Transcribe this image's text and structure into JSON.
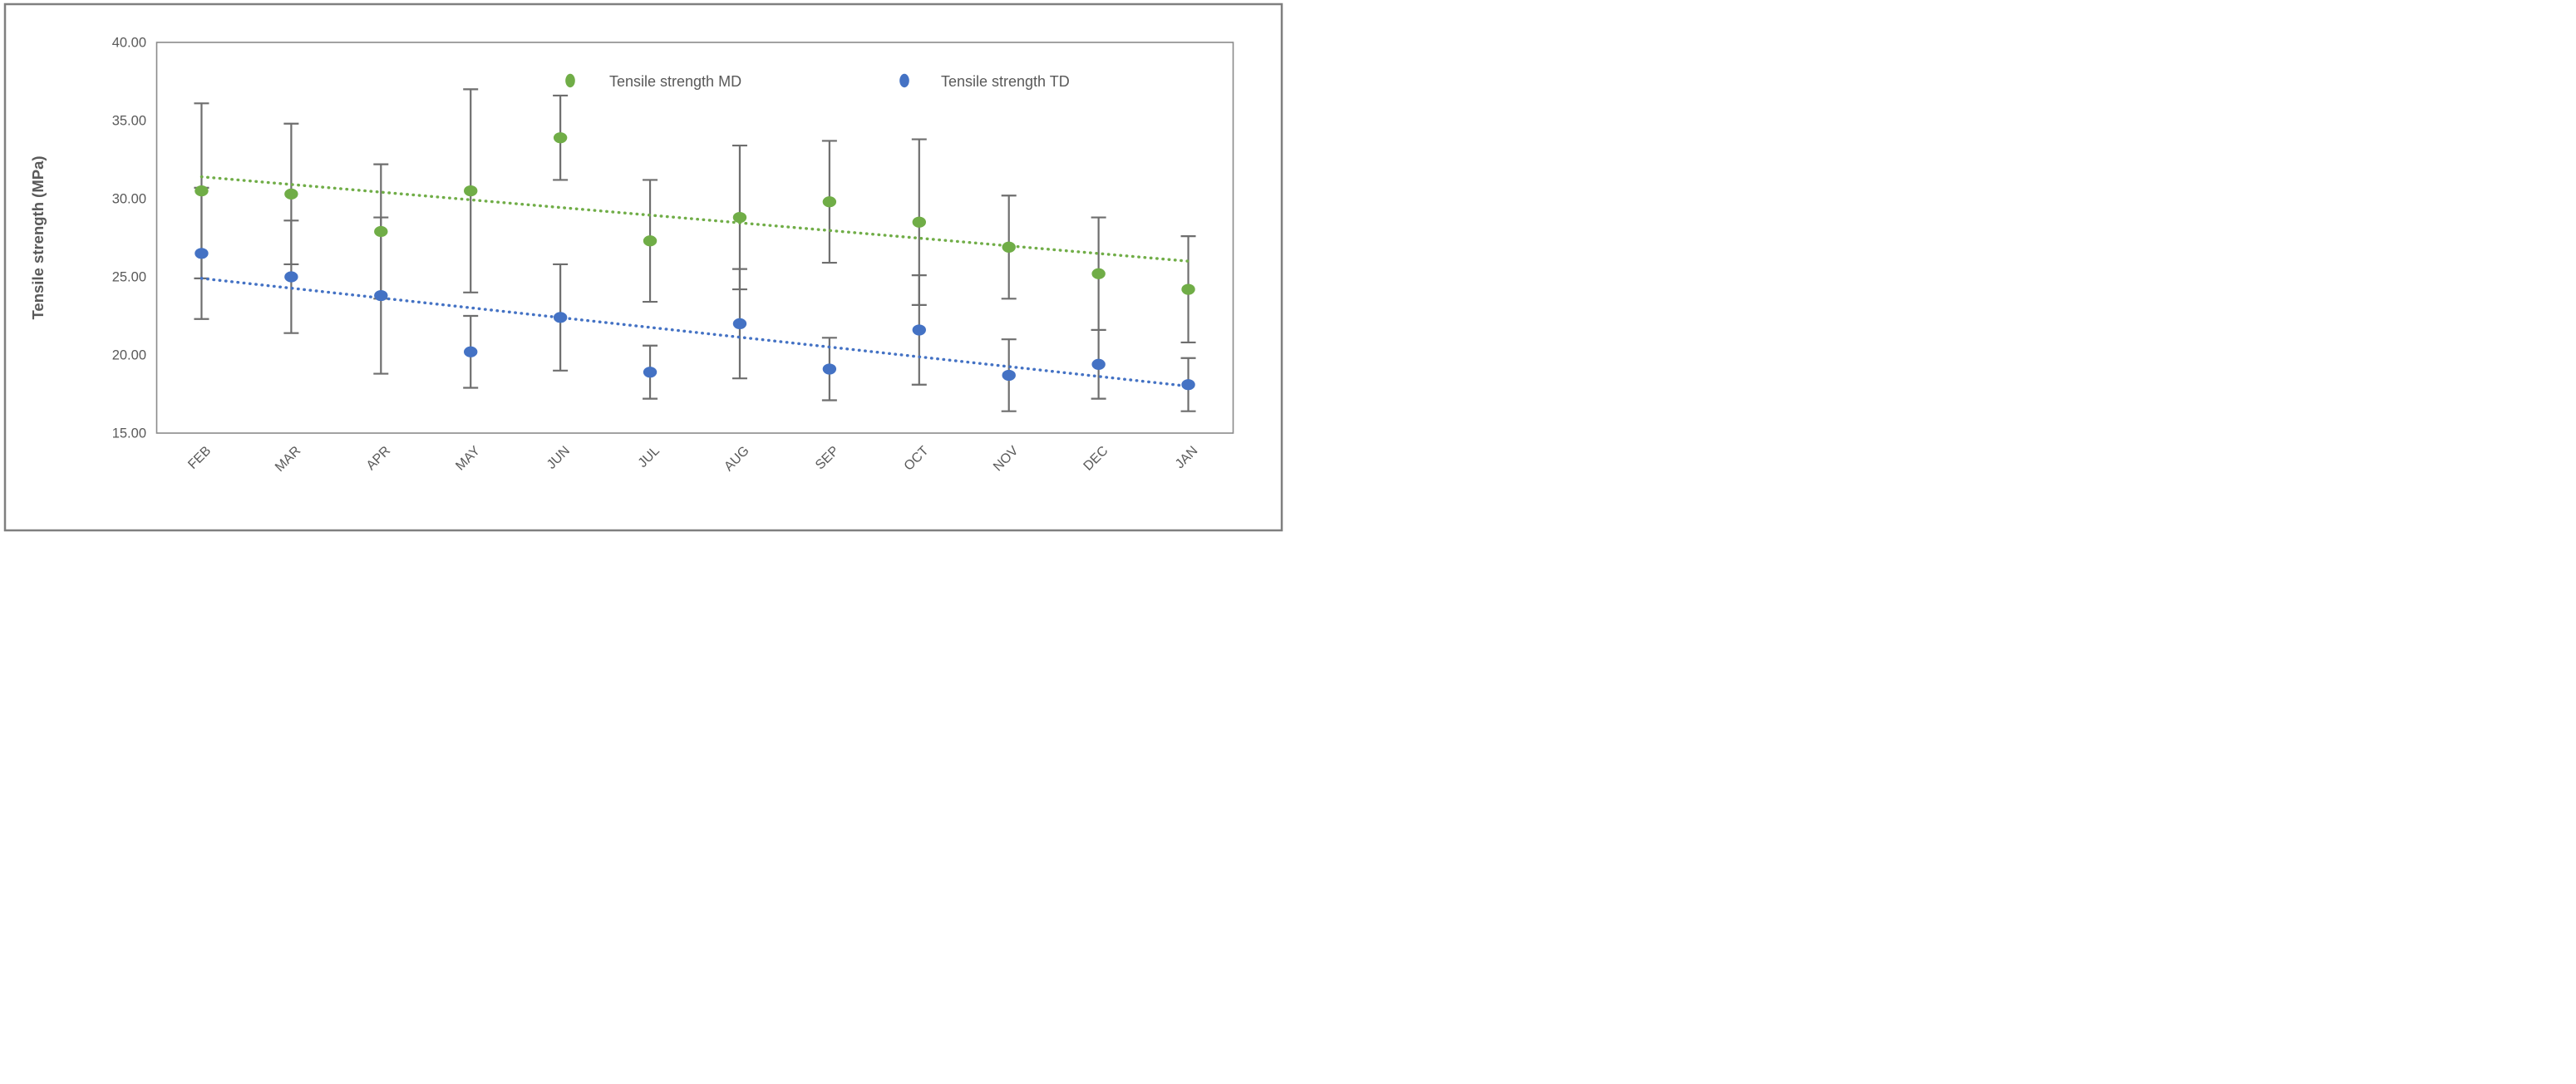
{
  "figure": {
    "y_axis_title": "Tensile strength (MPa)"
  },
  "legend": {
    "position": "top-inside",
    "items": [
      {
        "label": "Tensile strength MD",
        "color": "#70AD47"
      },
      {
        "label": "Tensile strength TD",
        "color": "#4472C4"
      }
    ]
  },
  "chart_data": {
    "type": "scatter",
    "title": "",
    "xlabel": "",
    "ylabel": "Tensile strength (MPa)",
    "ylim": [
      15,
      40
    ],
    "y_ticks": [
      {
        "value": 40,
        "label": "40.00"
      },
      {
        "value": 35,
        "label": "35.00"
      },
      {
        "value": 30,
        "label": "30.00"
      },
      {
        "value": 25,
        "label": "25.00"
      },
      {
        "value": 20,
        "label": "20.00"
      },
      {
        "value": 15,
        "label": "15.00"
      }
    ],
    "grid": false,
    "legend_position": "top",
    "categories": [
      "FEB",
      "MAR",
      "APR",
      "MAY",
      "JUN",
      "JUL",
      "AUG",
      "SEP",
      "OCT",
      "NOV",
      "DEC",
      "JAN"
    ],
    "series": [
      {
        "name": "Tensile strength MD",
        "color": "#70AD47",
        "marker": "circle",
        "values": [
          30.5,
          30.3,
          27.9,
          30.5,
          33.9,
          27.3,
          28.8,
          29.8,
          28.5,
          26.9,
          25.2,
          24.2
        ],
        "error_bars": [
          5.6,
          4.5,
          4.3,
          6.5,
          2.7,
          3.9,
          4.6,
          3.9,
          5.3,
          3.3,
          3.6,
          3.4
        ],
        "trendline": {
          "style": "dotted",
          "start_value": 31.4,
          "end_value": 26.0
        }
      },
      {
        "name": "Tensile strength TD",
        "color": "#4472C4",
        "marker": "circle",
        "values": [
          26.5,
          25.0,
          23.8,
          20.2,
          22.4,
          18.9,
          22.0,
          19.1,
          21.6,
          18.7,
          19.4,
          18.1
        ],
        "error_bars": [
          4.2,
          3.6,
          5.0,
          2.3,
          3.4,
          1.7,
          3.5,
          2.0,
          3.5,
          2.3,
          2.2,
          1.7
        ],
        "trendline": {
          "style": "dotted",
          "start_value": 24.9,
          "end_value": 18.0
        }
      }
    ],
    "error_bar_color": "#6E6E6E"
  }
}
